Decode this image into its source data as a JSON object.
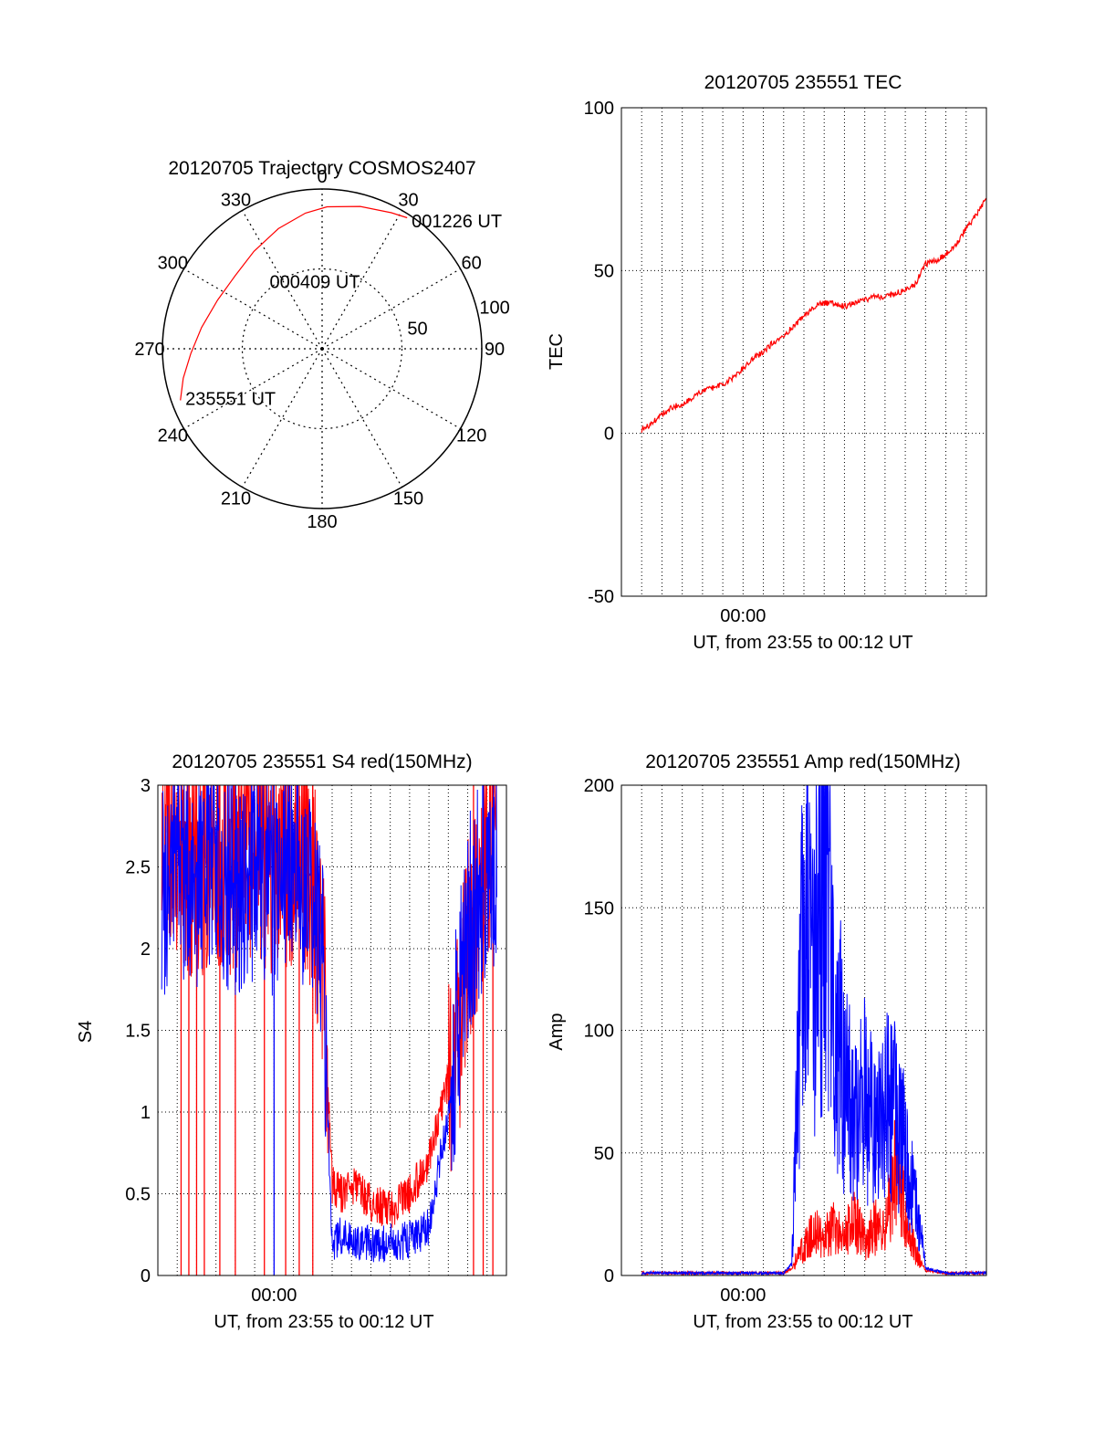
{
  "chart_data": [
    {
      "type": "polar",
      "title": "20120705 Trajectory COSMOS2407",
      "angle_labels": [
        "0",
        "30",
        "60",
        "90",
        "120",
        "150",
        "180",
        "210",
        "240",
        "270",
        "300",
        "330"
      ],
      "radial_labels": [
        "50",
        "100"
      ],
      "series": [
        {
          "color": "#ff0000",
          "points": [
            {
              "az": 250,
              "el": 5
            },
            {
              "az": 258,
              "el": 10
            },
            {
              "az": 268,
              "el": 16
            },
            {
              "az": 280,
              "el": 21
            },
            {
              "az": 295,
              "el": 25
            },
            {
              "az": 310,
              "el": 26
            },
            {
              "az": 325,
              "el": 23
            },
            {
              "az": 340,
              "el": 18
            },
            {
              "az": 353,
              "el": 13
            },
            {
              "az": 2,
              "el": 10
            },
            {
              "az": 15,
              "el": 7
            },
            {
              "az": 27,
              "el": 4
            },
            {
              "az": 33,
              "el": 2
            }
          ]
        }
      ],
      "annotations": [
        {
          "text": "001226 UT",
          "az": 35,
          "el": 2
        },
        {
          "text": "000409 UT",
          "az": 322,
          "el": 42
        },
        {
          "text": "235551 UT",
          "az": 250,
          "el": 8
        }
      ]
    },
    {
      "type": "line",
      "title": "20120705 235551 TEC",
      "xlabel": "UT, from 23:55 to 00:12 UT",
      "ylabel": "TEC",
      "x_tick_labels": [
        {
          "x": 5,
          "label": "00:00"
        }
      ],
      "xlim": [
        -1,
        17
      ],
      "ylim": [
        -50,
        100
      ],
      "yticks": [
        -50,
        0,
        50,
        100
      ],
      "grid": true,
      "series": [
        {
          "color": "#ff0000",
          "x": [
            0,
            0.5,
            1,
            1.5,
            2,
            2.5,
            3,
            3.5,
            4,
            4.5,
            5,
            5.5,
            6,
            6.5,
            7,
            7.5,
            8,
            8.5,
            9,
            9.5,
            10,
            10.5,
            11,
            11.5,
            12,
            12.5,
            13,
            13.5,
            14,
            14.5,
            15,
            15.5,
            16,
            16.5,
            17
          ],
          "y": [
            1,
            3,
            6,
            8,
            9,
            11,
            13,
            14,
            15,
            17,
            20,
            23,
            25,
            28,
            30,
            33,
            36,
            39,
            40,
            40,
            39,
            40,
            41,
            42,
            42,
            43,
            44,
            46,
            52,
            53,
            55,
            58,
            63,
            67,
            72
          ]
        }
      ]
    },
    {
      "type": "line",
      "title": "20120705 235551 S4 red(150MHz)",
      "xlabel": "UT, from 23:55 to 00:12 UT",
      "ylabel": "S4",
      "x_tick_labels": [
        {
          "x": 5,
          "label": "00:00"
        }
      ],
      "xlim": [
        -1,
        17
      ],
      "ylim": [
        0,
        3
      ],
      "yticks": [
        0,
        0.5,
        1,
        1.5,
        2,
        2.5,
        3
      ],
      "y_tick_labels": [
        "0",
        "0.5",
        "1",
        "1.5",
        "2",
        "2.5",
        "3"
      ],
      "grid": true,
      "series": [
        {
          "color": "#ff0000",
          "x": [
            -0.8,
            0,
            1,
            2,
            3,
            4,
            5,
            6,
            7,
            7.5,
            8,
            8.5,
            9,
            10,
            11,
            12,
            13,
            14,
            14.5,
            15,
            16,
            16.5
          ],
          "y": [
            2.8,
            2.6,
            2.5,
            2.6,
            2.5,
            2.6,
            2.5,
            2.6,
            2.4,
            2.0,
            0.55,
            0.5,
            0.55,
            0.45,
            0.4,
            0.5,
            0.7,
            1.2,
            1.5,
            2.0,
            2.6,
            2.8
          ],
          "drops": [
            0.2,
            0.6,
            1.0,
            1.4,
            2.2,
            3.0,
            4.5,
            5.6,
            6.3,
            7.0,
            15.3,
            15.8,
            16.3
          ]
        },
        {
          "color": "#0000ff",
          "x": [
            -0.8,
            0,
            1,
            2,
            3,
            4,
            5,
            6,
            7,
            7.5,
            8,
            8.5,
            9,
            10,
            11,
            12,
            13,
            14,
            14.5,
            15,
            16,
            16.5
          ],
          "y": [
            2.3,
            2.5,
            2.4,
            2.5,
            2.4,
            2.5,
            2.4,
            2.5,
            2.3,
            1.9,
            0.2,
            0.25,
            0.22,
            0.2,
            0.2,
            0.22,
            0.3,
            1.0,
            1.6,
            2.1,
            2.5,
            2.6
          ],
          "drops": [
            5.0
          ]
        }
      ]
    },
    {
      "type": "line",
      "title": "20120705 235551 Amp red(150MHz)",
      "xlabel": "UT, from 23:55 to 00:12 UT",
      "ylabel": "Amp",
      "x_tick_labels": [
        {
          "x": 5,
          "label": "00:00"
        }
      ],
      "xlim": [
        -1,
        17
      ],
      "ylim": [
        0,
        200
      ],
      "yticks": [
        0,
        50,
        100,
        150,
        200
      ],
      "grid": true,
      "series": [
        {
          "color": "#ff0000",
          "x": [
            0,
            1,
            2,
            3,
            4,
            5,
            6,
            7,
            7.4,
            8,
            8.5,
            9,
            9.5,
            10,
            10.5,
            11,
            11.5,
            12,
            12.5,
            13,
            13.5,
            14,
            15,
            16,
            17
          ],
          "y": [
            1,
            1,
            1,
            1,
            1,
            1,
            1,
            1,
            3,
            12,
            18,
            15,
            20,
            16,
            22,
            15,
            20,
            18,
            45,
            25,
            10,
            2,
            1,
            1,
            1
          ]
        },
        {
          "color": "#0000ff",
          "x": [
            0,
            1,
            2,
            3,
            4,
            5,
            6,
            7,
            7.4,
            8,
            8.5,
            9,
            9.5,
            10,
            10.5,
            11,
            11.5,
            12,
            12.5,
            13,
            13.5,
            14,
            15,
            16,
            17
          ],
          "y": [
            1,
            1,
            1,
            1,
            1,
            1,
            1,
            1,
            5,
            150,
            120,
            170,
            110,
            80,
            60,
            75,
            55,
            70,
            65,
            50,
            30,
            3,
            1,
            1,
            1
          ]
        }
      ]
    }
  ]
}
